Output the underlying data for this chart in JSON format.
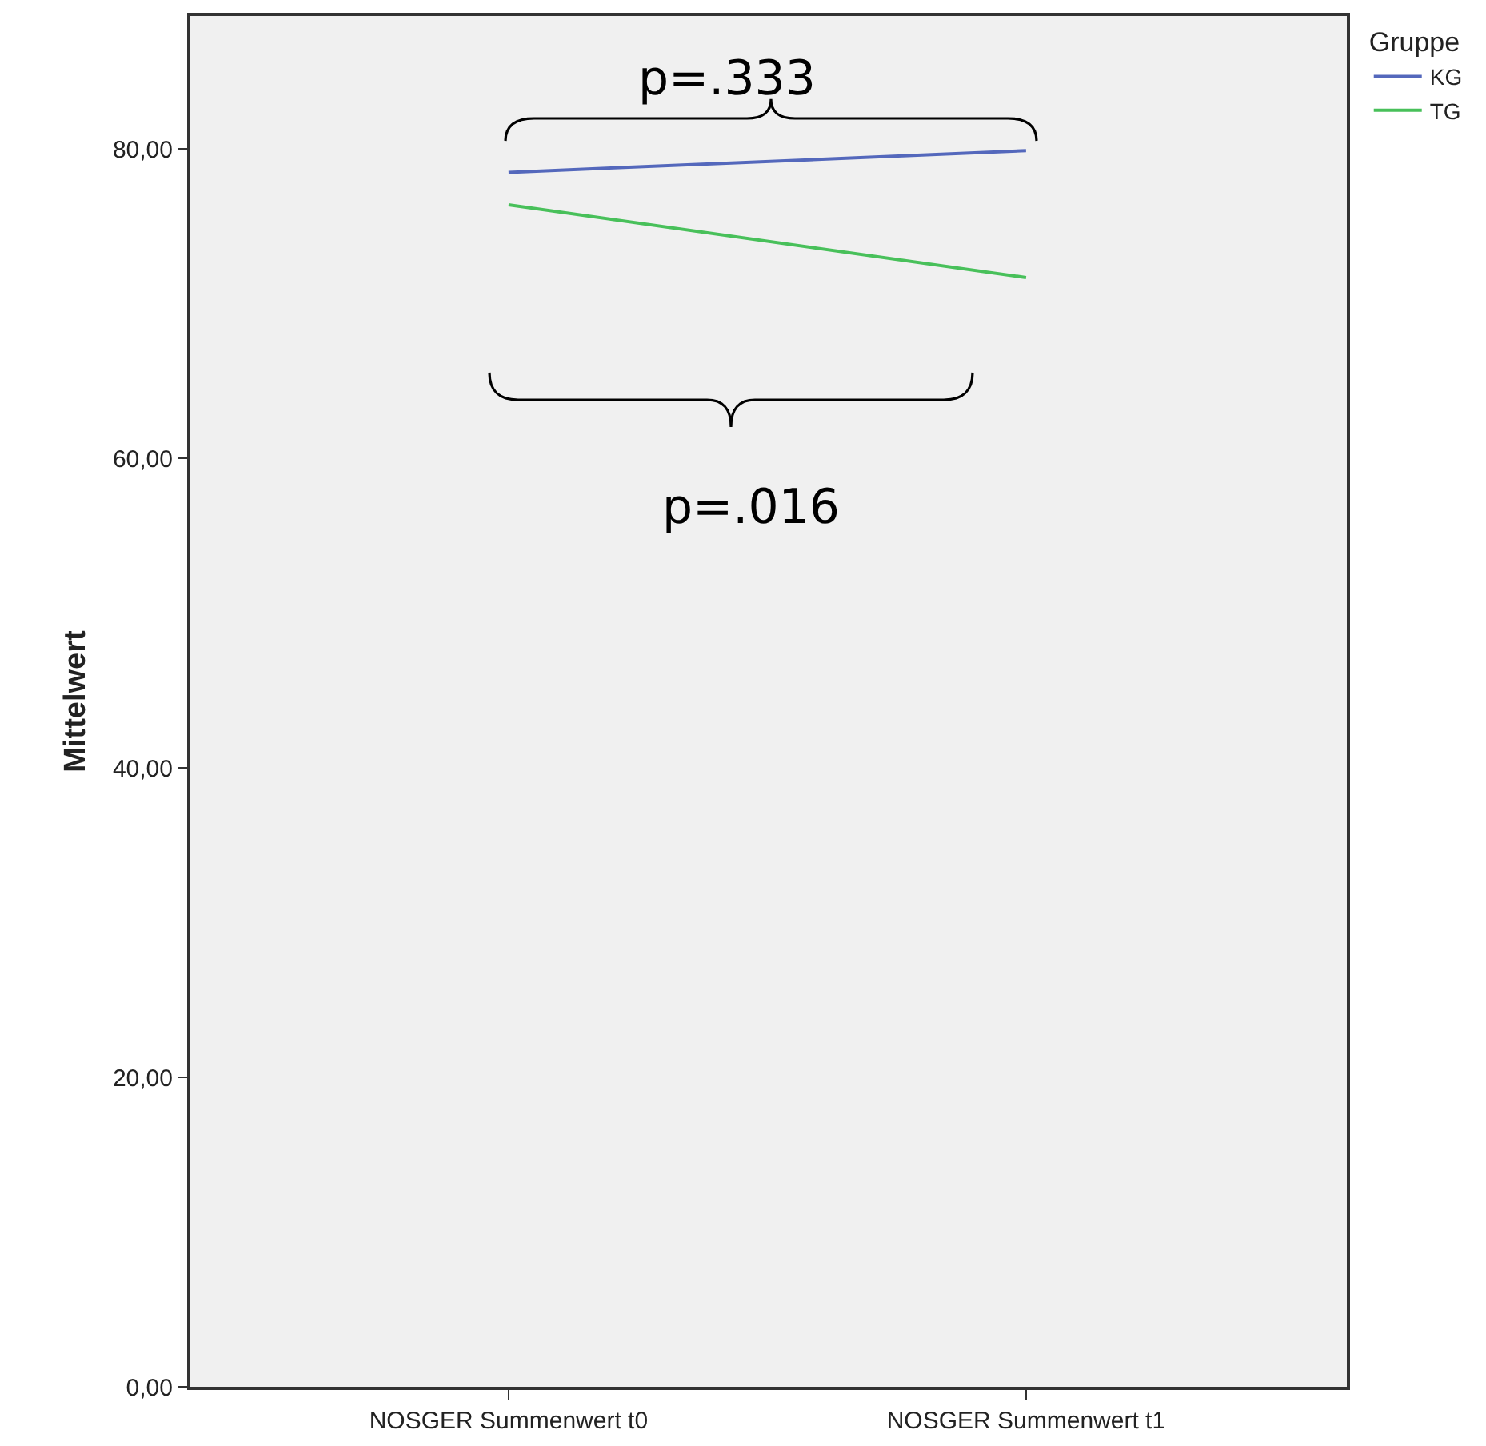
{
  "chart_data": {
    "type": "line",
    "ylabel": "Mittelwert",
    "legend_title": "Gruppe",
    "categories": [
      "NOSGER Summenwert t0",
      "NOSGER Summenwert t1"
    ],
    "series": [
      {
        "name": "KG",
        "color": "#5468bc",
        "values": [
          78.5,
          79.9
        ]
      },
      {
        "name": "TG",
        "color": "#48c05a",
        "values": [
          76.4,
          71.7
        ]
      }
    ],
    "ylim": [
      0,
      88.6
    ],
    "yticks": [
      {
        "value": 0,
        "label": "0,00"
      },
      {
        "value": 20,
        "label": "20,00"
      },
      {
        "value": 40,
        "label": "40,00"
      },
      {
        "value": 60,
        "label": "60,00"
      },
      {
        "value": 80,
        "label": "80,00"
      }
    ],
    "grid": false,
    "legend": "right",
    "marker": "none",
    "line_style": "solid",
    "annotations": [
      "p=.333",
      "p=.016"
    ]
  }
}
